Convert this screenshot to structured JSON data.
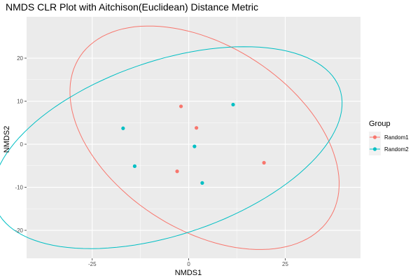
{
  "chart_data": {
    "type": "scatter",
    "title": "NMDS CLR Plot with Aitchison(Euclidean) Distance Metric",
    "xlabel": "NMDS1",
    "ylabel": "NMDS2",
    "xlim": [
      -42.0,
      44.5
    ],
    "ylim": [
      -26.5,
      29.6
    ],
    "x_ticks": [
      -25,
      0,
      25
    ],
    "x_tick_labels": [
      "-25",
      "0",
      "25"
    ],
    "y_ticks": [
      -20,
      -10,
      0,
      10,
      20
    ],
    "y_tick_labels": [
      "-20",
      "-10",
      "0",
      "10",
      "20"
    ],
    "grid": true,
    "legend": {
      "title": "Group",
      "position": "right"
    },
    "series": [
      {
        "name": "Random1",
        "color": "#F8766D",
        "points": [
          {
            "x": -2.0,
            "y": 8.8
          },
          {
            "x": 2.0,
            "y": 3.8
          },
          {
            "x": -3.0,
            "y": -6.3
          },
          {
            "x": 19.5,
            "y": -4.3
          }
        ],
        "ellipse": {
          "center": [
            4.1,
            1.5
          ],
          "radii": [
            37.5,
            22.0
          ],
          "rotation_deg": -27
        }
      },
      {
        "name": "Random2",
        "color": "#00BFC4",
        "points": [
          {
            "x": 11.5,
            "y": 9.2
          },
          {
            "x": -17.0,
            "y": 3.7
          },
          {
            "x": 1.5,
            "y": -0.5
          },
          {
            "x": -14.0,
            "y": -5.1
          },
          {
            "x": 3.5,
            "y": -9.0
          }
        ],
        "ellipse": {
          "center": [
            -5.5,
            -0.8
          ],
          "radii": [
            46.7,
            20.4
          ],
          "rotation_deg": 16
        }
      }
    ]
  }
}
